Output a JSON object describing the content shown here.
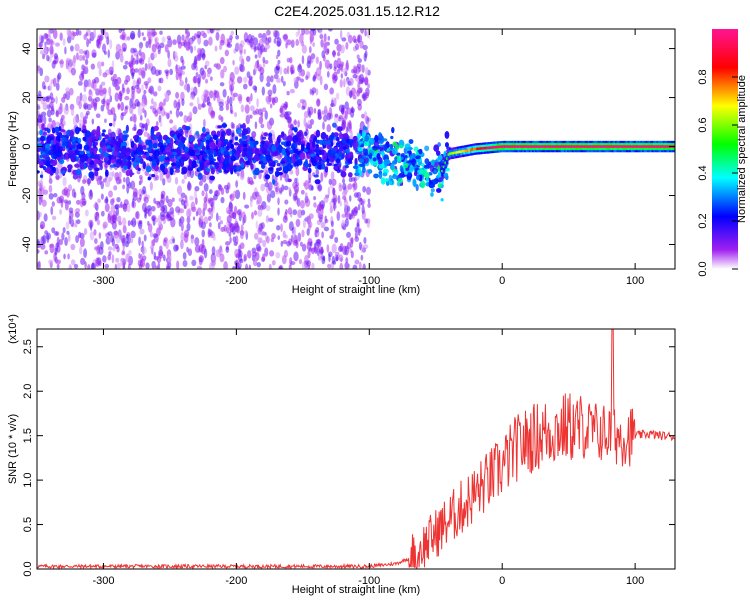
{
  "title": "C2E4.2025.031.15.12.R12",
  "chart_data": [
    {
      "type": "heatmap",
      "xlabel": "Height of straight line (km)",
      "ylabel": "Frequency (Hz)",
      "xlim": [
        -350,
        130
      ],
      "ylim": [
        -50,
        48
      ],
      "xticks": [
        -300,
        -200,
        -100,
        0,
        100
      ],
      "yticks": [
        -40,
        -20,
        0,
        20,
        40
      ],
      "colorbar": {
        "label": "Normalized spectral amplitude",
        "range": [
          0,
          1
        ],
        "ticks": [
          "0.0",
          "0.2",
          "0.4",
          "0.6",
          "0.8"
        ],
        "tick_values": [
          0.0,
          0.2,
          0.4,
          0.6,
          0.8
        ],
        "colors": [
          "#ffffff",
          "#a020f0",
          "#0000ff",
          "#00ffff",
          "#00ff00",
          "#ffff00",
          "#ff0000",
          "#ff1493"
        ]
      },
      "description_features": {
        "ridge": [
          [
            -350,
            -2
          ],
          [
            -100,
            -2
          ],
          [
            -80,
            -6
          ],
          [
            -60,
            -9
          ],
          [
            -45,
            -10
          ],
          [
            -40,
            -3
          ],
          [
            -20,
            -1
          ],
          [
            0,
            0
          ],
          [
            130,
            0
          ]
        ],
        "noise_extent_x": [
          -350,
          -100
        ],
        "strong_band_x": [
          -10,
          130
        ]
      }
    },
    {
      "type": "line",
      "xlabel": "Height of straight line (km)",
      "ylabel": "SNR (10 * v/v)",
      "yscale_label": "(x10⁴)",
      "xlim": [
        -350,
        130
      ],
      "ylim": [
        0,
        2.7
      ],
      "xticks": [
        -300,
        -200,
        -100,
        0,
        100
      ],
      "yticks": [
        0.0,
        0.5,
        1.0,
        1.5,
        2.0,
        2.5
      ],
      "ytick_labels": [
        "0.0",
        "0.5",
        "1.0",
        "1.5",
        "2.0",
        "2.5"
      ],
      "series": [
        {
          "color": "#ee3333",
          "x": [
            -350,
            -300,
            -250,
            -200,
            -150,
            -100,
            -80,
            -70,
            -60,
            -50,
            -40,
            -30,
            -20,
            -10,
            0,
            10,
            20,
            30,
            40,
            50,
            60,
            70,
            80,
            90,
            100,
            110,
            120,
            130
          ],
          "y": [
            0.03,
            0.03,
            0.03,
            0.03,
            0.03,
            0.03,
            0.06,
            0.12,
            0.25,
            0.4,
            0.55,
            0.7,
            0.85,
            1.0,
            1.15,
            1.35,
            1.45,
            1.52,
            1.56,
            1.6,
            1.58,
            1.55,
            1.52,
            1.5,
            1.5,
            1.52,
            1.5,
            1.49
          ]
        }
      ]
    }
  ]
}
